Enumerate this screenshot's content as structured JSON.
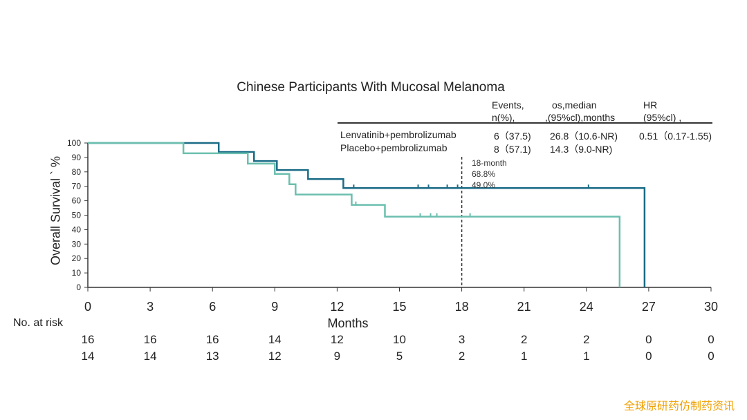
{
  "chart_data": {
    "type": "line",
    "title": "Chinese Participants With Mucosal Melanoma",
    "xlabel": "Months",
    "ylabel": "Overall Survival ` %",
    "xlim": [
      0,
      30
    ],
    "ylim": [
      0,
      100
    ],
    "xticks": [
      0,
      3,
      6,
      9,
      12,
      15,
      18,
      21,
      24,
      27,
      30
    ],
    "yticks": [
      0,
      10,
      20,
      30,
      40,
      50,
      60,
      70,
      80,
      90,
      100
    ],
    "series": [
      {
        "name": "Lenvatinib+pembrolizumab",
        "color": "#1a6b86",
        "steps": [
          [
            0,
            100
          ],
          [
            6.3,
            93.8
          ],
          [
            8.0,
            87.5
          ],
          [
            9.1,
            81.3
          ],
          [
            10.6,
            75.0
          ],
          [
            12.3,
            68.8
          ],
          [
            26.8,
            0
          ]
        ],
        "censor_x": [
          12.8,
          15.9,
          16.4,
          17.3,
          17.8,
          24.1
        ]
      },
      {
        "name": "Placebo+pembrolizumab",
        "color": "#6bbfae",
        "steps": [
          [
            0,
            100
          ],
          [
            4.6,
            92.9
          ],
          [
            7.7,
            85.7
          ],
          [
            9.0,
            78.6
          ],
          [
            9.7,
            71.4
          ],
          [
            10.0,
            64.3
          ],
          [
            12.7,
            57.1
          ],
          [
            14.3,
            49.0
          ],
          [
            25.6,
            0
          ]
        ],
        "censor_x": [
          12.9,
          16.0,
          16.5,
          16.8,
          18.4
        ]
      }
    ],
    "reference_line": {
      "x": 18,
      "style": "dashed"
    },
    "annotations": [
      "18-month",
      "68.8%",
      "49.0%"
    ],
    "grid": false,
    "legend": "table top-right"
  },
  "table": {
    "headers": {
      "events": [
        "Events,",
        "n(%),"
      ],
      "os": [
        "os,median",
        ",(95%cl),months"
      ],
      "hr": [
        "HR",
        "(95%cl) ,"
      ]
    },
    "rows": [
      {
        "name": "Lenvatinib+pembrolizumab",
        "events": "6（37.5)",
        "os": "26.8（10.6-NR)",
        "hr": "0.51（0.17-1.55)"
      },
      {
        "name": "Placebo+pembrolizumab",
        "events": "8（57.1)",
        "os": "14.3（9.0-NR)",
        "hr": ""
      }
    ]
  },
  "risk": {
    "title": "No. at risk",
    "rows": [
      [
        "16",
        "16",
        "16",
        "14",
        "12",
        "10",
        "3",
        "2",
        "2",
        "0",
        "0"
      ],
      [
        "14",
        "14",
        "13",
        "12",
        "9",
        "5",
        "2",
        "1",
        "1",
        "0",
        "0"
      ]
    ]
  },
  "watermark": "全球原研药仿制药资讯"
}
